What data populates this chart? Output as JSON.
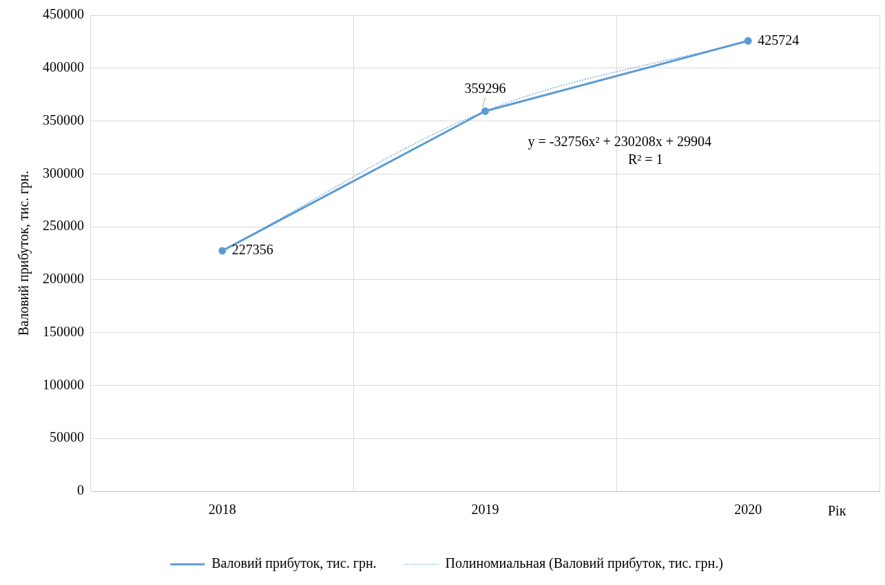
{
  "chart_data": {
    "type": "line",
    "xlabel": "Рік",
    "ylabel": "Валовий прибуток, тис. грн.",
    "categories": [
      "2018",
      "2019",
      "2020"
    ],
    "series": [
      {
        "name": "Валовий прибуток, тис. грн.",
        "color": "#5b9bd5",
        "values": [
          227356,
          359296,
          425724
        ],
        "marker": "circle",
        "line_style": "solid",
        "value_labels": [
          "227356",
          "359296",
          "425724"
        ]
      },
      {
        "name": "Полиномиальная (Валовий прибуток, тис. грн.)",
        "color": "#5b9bd5",
        "values": [
          227356,
          359296,
          425724
        ],
        "marker": "none",
        "line_style": "dotted"
      }
    ],
    "ylim": [
      0,
      450000
    ],
    "yticks": [
      0,
      50000,
      100000,
      150000,
      200000,
      250000,
      300000,
      350000,
      400000,
      450000
    ],
    "grid": true,
    "legend": "bottom",
    "annotations": [
      "y = -32756x² + 230208x + 29904",
      "R² = 1"
    ]
  }
}
